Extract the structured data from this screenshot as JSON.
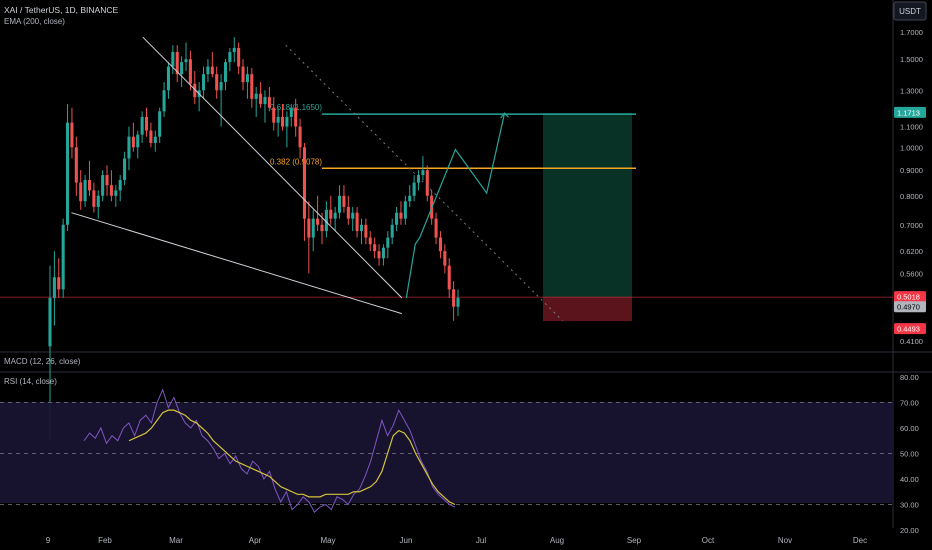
{
  "header": {
    "symbol_line": "XAI / TetherUS, 1D, BINANCE",
    "indicator_ema": "EMA (200, close)",
    "currency_button": "USDT"
  },
  "panes": {
    "macd_label": "MACD (12, 26, close)",
    "rsi_label": "RSI (14, close)"
  },
  "chart_data": [
    {
      "type": "candlestick",
      "title": "XAI / TetherUS, 1D, BINANCE",
      "y_scale": "log",
      "y_ticks": [
        "1.7000",
        "1.5000",
        "1.3000",
        "1.1000",
        "1.0000",
        "0.9000",
        "0.8000",
        "0.7000",
        "0.6200",
        "0.5600",
        "0.4100"
      ],
      "x_ticks": [
        "9",
        "Feb",
        "Mar",
        "Apr",
        "May",
        "Jun",
        "Jul",
        "Aug",
        "Sep",
        "Oct",
        "Nov",
        "Dec"
      ],
      "fib_levels": [
        {
          "label": "0.618 (1.1650)",
          "value": 1.165,
          "color": "#26a69a"
        },
        {
          "label": "0.382 (0.9078)",
          "value": 0.9078,
          "color": "#f6a623"
        }
      ],
      "price_labels": [
        {
          "text": "1.1713",
          "color": "#26a69a"
        },
        {
          "text": "0.5018",
          "color": "#f23645"
        },
        {
          "text": "08:14:53",
          "color": "#f23645"
        },
        {
          "text": "0.4970",
          "color": "#b2b5be"
        },
        {
          "text": "0.4493",
          "color": "#f23645"
        }
      ],
      "ohlc": [
        [
          0.4,
          0.58,
          0.26,
          0.5
        ],
        [
          0.5,
          0.62,
          0.44,
          0.55
        ],
        [
          0.55,
          0.6,
          0.5,
          0.52
        ],
        [
          0.52,
          0.72,
          0.5,
          0.7
        ],
        [
          0.7,
          1.22,
          0.68,
          1.12
        ],
        [
          1.12,
          1.2,
          0.95,
          1.0
        ],
        [
          1.0,
          1.05,
          0.8,
          0.85
        ],
        [
          0.85,
          0.9,
          0.75,
          0.78
        ],
        [
          0.78,
          0.88,
          0.76,
          0.86
        ],
        [
          0.86,
          0.94,
          0.8,
          0.82
        ],
        [
          0.82,
          0.85,
          0.74,
          0.76
        ],
        [
          0.76,
          0.82,
          0.72,
          0.8
        ],
        [
          0.8,
          0.9,
          0.78,
          0.88
        ],
        [
          0.88,
          0.92,
          0.8,
          0.84
        ],
        [
          0.84,
          0.9,
          0.78,
          0.8
        ],
        [
          0.8,
          0.84,
          0.76,
          0.82
        ],
        [
          0.82,
          0.88,
          0.78,
          0.86
        ],
        [
          0.86,
          0.98,
          0.84,
          0.95
        ],
        [
          0.95,
          1.1,
          0.9,
          1.05
        ],
        [
          1.05,
          1.12,
          0.98,
          1.0
        ],
        [
          1.0,
          1.08,
          0.95,
          1.06
        ],
        [
          1.06,
          1.18,
          1.02,
          1.15
        ],
        [
          1.15,
          1.2,
          1.05,
          1.08
        ],
        [
          1.08,
          1.12,
          1.0,
          1.02
        ],
        [
          1.02,
          1.08,
          0.98,
          1.05
        ],
        [
          1.05,
          1.2,
          1.02,
          1.18
        ],
        [
          1.18,
          1.35,
          1.15,
          1.3
        ],
        [
          1.3,
          1.48,
          1.25,
          1.45
        ],
        [
          1.45,
          1.6,
          1.4,
          1.55
        ],
        [
          1.55,
          1.6,
          1.35,
          1.4
        ],
        [
          1.4,
          1.52,
          1.32,
          1.48
        ],
        [
          1.48,
          1.62,
          1.42,
          1.5
        ],
        [
          1.5,
          1.56,
          1.3,
          1.34
        ],
        [
          1.34,
          1.42,
          1.22,
          1.26
        ],
        [
          1.26,
          1.35,
          1.18,
          1.3
        ],
        [
          1.3,
          1.45,
          1.25,
          1.4
        ],
        [
          1.4,
          1.5,
          1.35,
          1.45
        ],
        [
          1.45,
          1.55,
          1.38,
          1.4
        ],
        [
          1.4,
          1.45,
          1.25,
          1.3
        ],
        [
          1.3,
          1.4,
          1.1,
          1.35
        ],
        [
          1.35,
          1.5,
          1.3,
          1.48
        ],
        [
          1.48,
          1.58,
          1.42,
          1.55
        ],
        [
          1.55,
          1.66,
          1.48,
          1.58
        ],
        [
          1.58,
          1.62,
          1.4,
          1.45
        ],
        [
          1.45,
          1.5,
          1.3,
          1.35
        ],
        [
          1.35,
          1.45,
          1.25,
          1.4
        ],
        [
          1.4,
          1.44,
          1.2,
          1.25
        ],
        [
          1.25,
          1.32,
          1.15,
          1.28
        ],
        [
          1.28,
          1.35,
          1.2,
          1.22
        ],
        [
          1.22,
          1.3,
          1.12,
          1.26
        ],
        [
          1.26,
          1.32,
          1.18,
          1.2
        ],
        [
          1.2,
          1.26,
          1.08,
          1.12
        ],
        [
          1.12,
          1.2,
          1.05,
          1.15
        ],
        [
          1.15,
          1.22,
          1.08,
          1.1
        ],
        [
          1.1,
          1.18,
          1.0,
          1.15
        ],
        [
          1.15,
          1.22,
          1.1,
          1.2
        ],
        [
          1.2,
          1.25,
          1.05,
          1.1
        ],
        [
          1.1,
          1.14,
          0.95,
          1.0
        ],
        [
          1.0,
          1.02,
          0.65,
          0.72
        ],
        [
          0.72,
          0.78,
          0.56,
          0.66
        ],
        [
          0.66,
          0.75,
          0.62,
          0.72
        ],
        [
          0.72,
          0.8,
          0.68,
          0.7
        ],
        [
          0.7,
          0.74,
          0.64,
          0.68
        ],
        [
          0.68,
          0.78,
          0.66,
          0.75
        ],
        [
          0.75,
          0.8,
          0.7,
          0.72
        ],
        [
          0.72,
          0.76,
          0.68,
          0.74
        ],
        [
          0.74,
          0.84,
          0.72,
          0.8
        ],
        [
          0.8,
          0.84,
          0.74,
          0.76
        ],
        [
          0.76,
          0.8,
          0.7,
          0.72
        ],
        [
          0.72,
          0.76,
          0.68,
          0.74
        ],
        [
          0.74,
          0.76,
          0.66,
          0.68
        ],
        [
          0.68,
          0.72,
          0.64,
          0.7
        ],
        [
          0.7,
          0.72,
          0.64,
          0.66
        ],
        [
          0.66,
          0.68,
          0.62,
          0.64
        ],
        [
          0.64,
          0.66,
          0.6,
          0.62
        ],
        [
          0.62,
          0.64,
          0.58,
          0.6
        ],
        [
          0.6,
          0.64,
          0.58,
          0.63
        ],
        [
          0.63,
          0.68,
          0.6,
          0.66
        ],
        [
          0.66,
          0.72,
          0.64,
          0.7
        ],
        [
          0.7,
          0.76,
          0.68,
          0.74
        ],
        [
          0.74,
          0.78,
          0.7,
          0.72
        ],
        [
          0.72,
          0.8,
          0.7,
          0.78
        ],
        [
          0.78,
          0.84,
          0.76,
          0.8
        ],
        [
          0.8,
          0.88,
          0.78,
          0.85
        ],
        [
          0.85,
          0.9,
          0.82,
          0.88
        ],
        [
          0.88,
          0.96,
          0.86,
          0.9
        ],
        [
          0.9,
          0.92,
          0.78,
          0.8
        ],
        [
          0.8,
          0.82,
          0.7,
          0.72
        ],
        [
          0.72,
          0.74,
          0.64,
          0.66
        ],
        [
          0.66,
          0.68,
          0.6,
          0.62
        ],
        [
          0.62,
          0.64,
          0.56,
          0.58
        ],
        [
          0.58,
          0.6,
          0.5,
          0.52
        ],
        [
          0.52,
          0.54,
          0.45,
          0.48
        ],
        [
          0.48,
          0.52,
          0.46,
          0.5
        ]
      ],
      "ema200_present": false,
      "trendlines": [
        {
          "name": "wedge-upper",
          "from": [
            0.16,
            1.66
          ],
          "to": [
            0.45,
            0.5
          ]
        },
        {
          "name": "wedge-lower",
          "from": [
            0.08,
            0.74
          ],
          "to": [
            0.45,
            0.465
          ]
        },
        {
          "name": "dotted-diagonal",
          "from": [
            0.32,
            1.6
          ],
          "to": [
            0.63,
            0.45
          ]
        }
      ],
      "projection_path": [
        [
          0.455,
          0.5
        ],
        [
          0.465,
          0.64
        ],
        [
          0.47,
          0.66
        ],
        [
          0.51,
          0.99
        ],
        [
          0.545,
          0.81
        ],
        [
          0.565,
          1.17
        ]
      ],
      "position": {
        "entry": 0.5018,
        "target": 1.1713,
        "stop": 0.4493
      }
    },
    {
      "type": "line",
      "title": "RSI (14, close)",
      "y_ticks": [
        "80.00",
        "70.00",
        "60.00",
        "50.00",
        "40.00",
        "30.00",
        "20.00"
      ],
      "bands": [
        70,
        50,
        30
      ],
      "ylim": [
        20,
        80
      ],
      "series": [
        {
          "color": "#7e57c2",
          "values": [
            55,
            58,
            56,
            60,
            54,
            57,
            55,
            60,
            62,
            57,
            63,
            65,
            62,
            70,
            75,
            68,
            72,
            66,
            62,
            60,
            63,
            57,
            55,
            52,
            48,
            50,
            46,
            49,
            44,
            42,
            47,
            45,
            40,
            43,
            36,
            31,
            35,
            28,
            30,
            33,
            31,
            27,
            29,
            30,
            28,
            33,
            32,
            30,
            34,
            36,
            41,
            47,
            55,
            63,
            57,
            61,
            67,
            63,
            59,
            53,
            47,
            43,
            37,
            34,
            32,
            30,
            29
          ]
        },
        {
          "color": "#d4c43a",
          "values": [
            null,
            null,
            null,
            null,
            null,
            null,
            null,
            null,
            55,
            56,
            57,
            58,
            60,
            63,
            66,
            67,
            67,
            66,
            65,
            63,
            62,
            60,
            58,
            55,
            53,
            51,
            49,
            47,
            46,
            45,
            44,
            43,
            42,
            41,
            39,
            37,
            36,
            35,
            34,
            34,
            33,
            33,
            33,
            34,
            34,
            34,
            34,
            34,
            35,
            35,
            36,
            37,
            39,
            43,
            50,
            57,
            59,
            58,
            55,
            50,
            46,
            42,
            38,
            35,
            33,
            31,
            30
          ]
        }
      ]
    }
  ]
}
